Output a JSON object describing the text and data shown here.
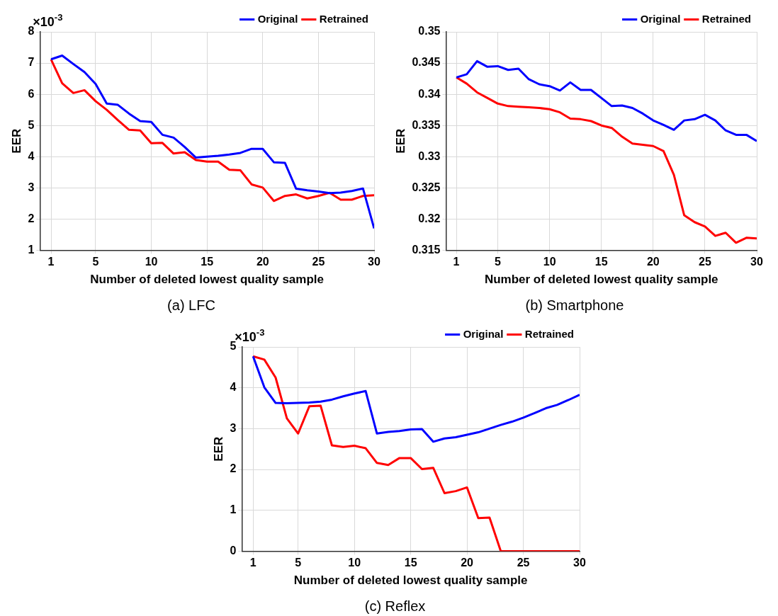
{
  "chart_data": [
    {
      "type": "line",
      "title": "(a) LFC",
      "xlabel": "Number of deleted lowest quality sample",
      "ylabel": "EER",
      "annotations": [
        "×10$^{-3}$"
      ],
      "x": [
        1,
        2,
        3,
        4,
        5,
        6,
        7,
        8,
        9,
        10,
        11,
        12,
        13,
        14,
        15,
        16,
        17,
        18,
        19,
        20,
        21,
        22,
        23,
        24,
        25,
        26,
        27,
        28,
        29,
        30
      ],
      "xlim": [
        0,
        30
      ],
      "xticks": [
        1,
        5,
        10,
        15,
        20,
        25,
        30
      ],
      "ylim": [
        1,
        8
      ],
      "yticks": [
        1,
        2,
        3,
        4,
        5,
        6,
        7,
        8
      ],
      "grid": true,
      "legend": "top right",
      "marker": "none",
      "line_style": "solid",
      "series": [
        {
          "name": "Original",
          "color": "#0000ff",
          "values": [
            7.12,
            7.24,
            6.97,
            6.71,
            6.33,
            5.7,
            5.66,
            5.38,
            5.14,
            5.11,
            4.7,
            4.61,
            4.31,
            3.97,
            4.0,
            4.03,
            4.07,
            4.12,
            4.25,
            4.25,
            3.82,
            3.8,
            2.97,
            2.92,
            2.88,
            2.83,
            2.85,
            2.9,
            2.98,
            1.7
          ]
        },
        {
          "name": "Retrained",
          "color": "#ff0000",
          "values": [
            7.12,
            6.35,
            6.04,
            6.13,
            5.78,
            5.5,
            5.17,
            4.86,
            4.84,
            4.43,
            4.44,
            4.1,
            4.14,
            3.89,
            3.84,
            3.84,
            3.58,
            3.56,
            3.11,
            3.01,
            2.58,
            2.74,
            2.79,
            2.66,
            2.74,
            2.84,
            2.62,
            2.62,
            2.74,
            2.76
          ]
        }
      ]
    },
    {
      "type": "line",
      "title": "(b) Smartphone",
      "xlabel": "Number of deleted lowest quality sample",
      "ylabel": "EER",
      "x": [
        1,
        2,
        3,
        4,
        5,
        6,
        7,
        8,
        9,
        10,
        11,
        12,
        13,
        14,
        15,
        16,
        17,
        18,
        19,
        20,
        21,
        22,
        23,
        24,
        25,
        26,
        27,
        28,
        29,
        30
      ],
      "xlim": [
        0,
        30
      ],
      "xticks": [
        1,
        5,
        10,
        15,
        20,
        25,
        30
      ],
      "ylim": [
        0.315,
        0.35
      ],
      "yticks": [
        0.315,
        0.32,
        0.325,
        0.33,
        0.335,
        0.34,
        0.345,
        0.35
      ],
      "grid": true,
      "legend": "top right",
      "marker": "none",
      "line_style": "solid",
      "series": [
        {
          "name": "Original",
          "color": "#0000ff",
          "values": [
            0.3427,
            0.3432,
            0.3453,
            0.3444,
            0.3445,
            0.3439,
            0.3441,
            0.3424,
            0.3416,
            0.3413,
            0.3406,
            0.3419,
            0.3407,
            0.3407,
            0.3394,
            0.3381,
            0.3382,
            0.3378,
            0.3369,
            0.3358,
            0.3351,
            0.3343,
            0.3358,
            0.336,
            0.3367,
            0.3358,
            0.3342,
            0.3335,
            0.3335,
            0.3325
          ]
        },
        {
          "name": "Retrained",
          "color": "#ff0000",
          "values": [
            0.3427,
            0.3417,
            0.3403,
            0.3394,
            0.3385,
            0.3381,
            0.338,
            0.3379,
            0.3378,
            0.3376,
            0.3371,
            0.3361,
            0.336,
            0.3357,
            0.335,
            0.3346,
            0.3332,
            0.3321,
            0.3319,
            0.3317,
            0.3309,
            0.3271,
            0.3206,
            0.3195,
            0.3188,
            0.3173,
            0.3178,
            0.3162,
            0.317,
            0.3169
          ]
        }
      ]
    },
    {
      "type": "line",
      "title": "(c) Reflex",
      "xlabel": "Number of deleted lowest quality sample",
      "ylabel": "EER",
      "annotations": [
        "×10$^{-3}$"
      ],
      "x": [
        1,
        2,
        3,
        4,
        5,
        6,
        7,
        8,
        9,
        10,
        11,
        12,
        13,
        14,
        15,
        16,
        17,
        18,
        19,
        20,
        21,
        22,
        23,
        24,
        25,
        26,
        27,
        28,
        29,
        30
      ],
      "xlim": [
        0,
        30
      ],
      "xticks": [
        1,
        5,
        10,
        15,
        20,
        25,
        30
      ],
      "ylim": [
        0,
        5
      ],
      "yticks": [
        0,
        1,
        2,
        3,
        4,
        5
      ],
      "grid": true,
      "legend": "top right",
      "marker": "none",
      "line_style": "solid",
      "series": [
        {
          "name": "Original",
          "color": "#0000ff",
          "values": [
            4.77,
            4.01,
            3.63,
            3.62,
            3.63,
            3.64,
            3.66,
            3.71,
            3.79,
            3.86,
            3.92,
            2.88,
            2.92,
            2.94,
            2.98,
            2.99,
            2.68,
            2.76,
            2.79,
            2.85,
            2.91,
            3.0,
            3.09,
            3.17,
            3.27,
            3.38,
            3.5,
            3.58,
            3.7,
            3.83
          ]
        },
        {
          "name": "Retrained",
          "color": "#ff0000",
          "values": [
            4.77,
            4.69,
            4.25,
            3.25,
            2.88,
            3.55,
            3.56,
            2.59,
            2.55,
            2.58,
            2.52,
            2.16,
            2.11,
            2.28,
            2.28,
            2.01,
            2.04,
            1.42,
            1.47,
            1.56,
            0.81,
            0.82,
            0,
            0,
            0,
            0,
            0,
            0,
            0,
            0
          ]
        }
      ]
    }
  ]
}
